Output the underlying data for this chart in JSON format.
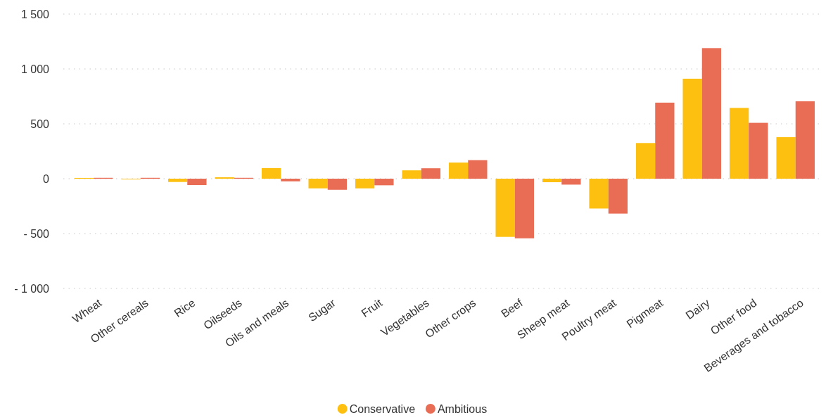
{
  "chart_data": {
    "type": "bar",
    "categories": [
      "Wheat",
      "Other cereals",
      "Rice",
      "Oilseeds",
      "Oils and meals",
      "Sugar",
      "Fruit",
      "Vegetables",
      "Other crops",
      "Beef",
      "Sheep meat",
      "Poultry meat",
      "Pigmeat",
      "Dairy",
      "Other food",
      "Beverages and tobacco"
    ],
    "series": [
      {
        "name": "Conservative",
        "color": "#fdc010",
        "values": [
          7,
          -6,
          -30,
          13,
          97,
          -88,
          -88,
          76,
          147,
          -530,
          -32,
          -272,
          325,
          911,
          645,
          379
        ]
      },
      {
        "name": "Ambitious",
        "color": "#e96c55",
        "values": [
          8,
          8,
          -58,
          8,
          -24,
          -101,
          -60,
          95,
          169,
          -543,
          -54,
          -318,
          693,
          1190,
          509,
          705
        ]
      }
    ],
    "ylim": [
      -1000,
      1500
    ],
    "yticks": [
      {
        "value": -1000,
        "label": "- 1 000"
      },
      {
        "value": -500,
        "label": "- 500"
      },
      0,
      500,
      {
        "value": 1000,
        "label": "1 000"
      },
      {
        "value": 1500,
        "label": "1 500"
      }
    ],
    "grid": "y",
    "legend": "bottom"
  }
}
